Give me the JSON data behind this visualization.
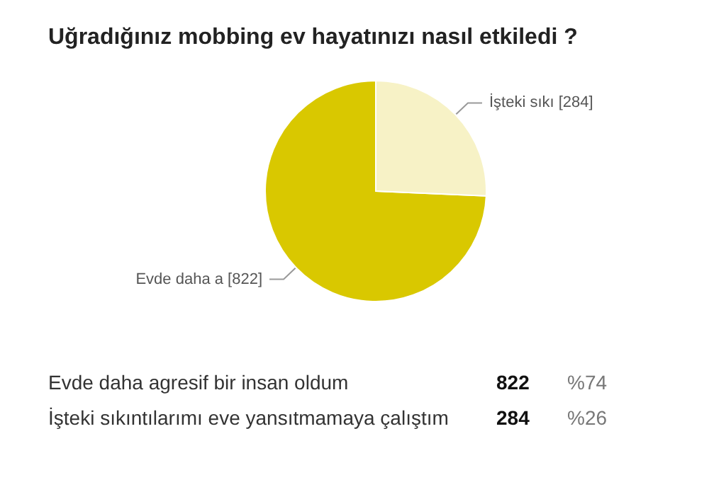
{
  "chart_data": [
    {
      "type": "pie",
      "title": "Uğradığınız mobbing ev hayatınızı nasıl etkiledi ?",
      "categories": [
        "Evde daha a [822]",
        "İşteki sıkı [284]"
      ],
      "values": [
        822,
        284
      ],
      "colors": [
        "#d9c800",
        "#f7f2c6"
      ],
      "legend": false
    },
    {
      "type": "other",
      "annotations": [
        "Evde daha agresif bir insan oldum",
        "822",
        "%74",
        "İşteki sıkıntılarımı eve yansıtmamaya çalıştım",
        "284",
        "%26"
      ]
    }
  ]
}
